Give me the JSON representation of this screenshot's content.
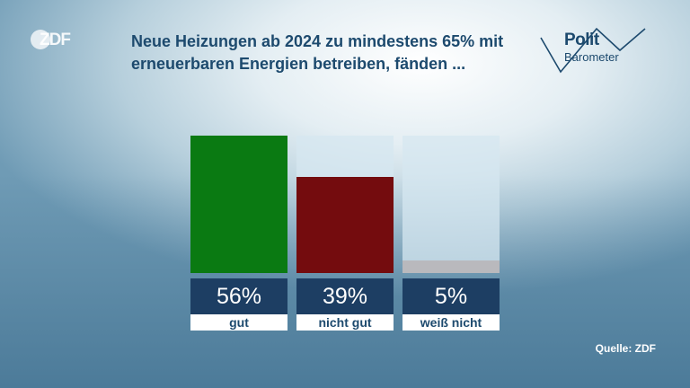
{
  "branding": {
    "broadcaster_logo_text": "ZDF",
    "program_logo_line1": "Polit",
    "program_logo_line2": "Barometer"
  },
  "header": {
    "title": "Neue Heizungen ab 2024 zu mindestens 65% mit erneuerbaren Energien betreiben, fänden ..."
  },
  "footer": {
    "source": "Quelle: ZDF"
  },
  "chart_data": {
    "type": "bar",
    "title": "Neue Heizungen ab 2024 zu mindestens 65% mit erneuerbaren Energien betreiben, fänden ...",
    "categories": [
      "gut",
      "nicht gut",
      "weiß nicht"
    ],
    "values": [
      56,
      39,
      5
    ],
    "value_labels": [
      "56%",
      "39%",
      "5%"
    ],
    "unit": "%",
    "ylim": [
      0,
      56
    ],
    "colors": [
      "#0a7a12",
      "#740c0e",
      "#b9b9bd"
    ],
    "grid": false,
    "legend": "none"
  }
}
